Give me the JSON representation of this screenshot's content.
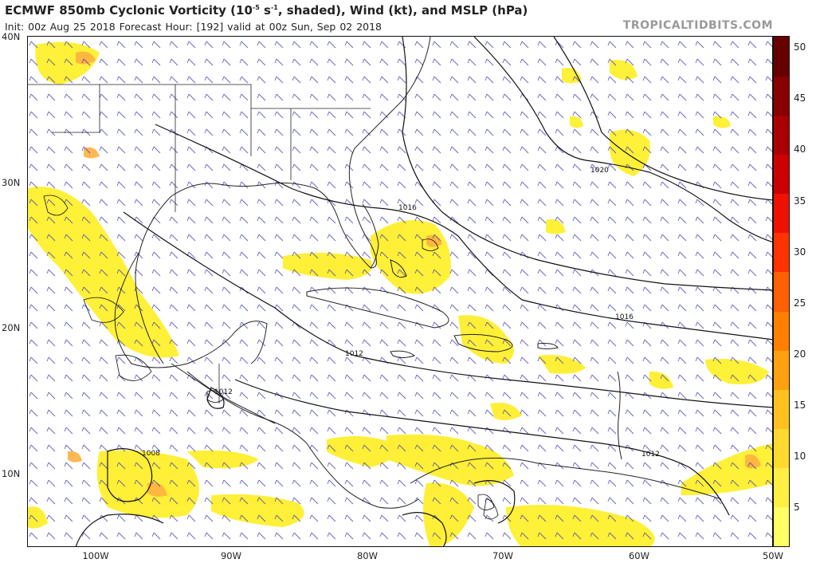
{
  "header": {
    "title_main": "ECMWF 850mb Cyclonic Vorticity (10",
    "title_exp": "-5",
    "title_unit": " s",
    "title_exp2": "-1",
    "title_rest": ", shaded), Wind (kt), and MSLP (hPa)",
    "subtitle": "Init: 00z Aug 25 2018   Forecast Hour: [192]   valid at 00z Sun, Sep 02 2018",
    "brand": "TROPICALTIDBITS.COM"
  },
  "axes": {
    "lat_labels": [
      "40N",
      "30N",
      "20N",
      "10N"
    ],
    "lon_labels": [
      "100W",
      "90W",
      "80W",
      "70W",
      "60W",
      "50W"
    ]
  },
  "colorbar": {
    "labels": [
      "50",
      "45",
      "40",
      "35",
      "30",
      "25",
      "20",
      "15",
      "10",
      "5"
    ],
    "colors": [
      "#ffff66",
      "#ffee44",
      "#ffd830",
      "#ffc020",
      "#ffa010",
      "#ff8000",
      "#ff6000",
      "#ff3300",
      "#ee1100",
      "#cc0000",
      "#aa0000",
      "#880000",
      "#660000"
    ]
  },
  "isobars": {
    "labels": [
      "1020",
      "1016",
      "1016",
      "1012",
      "1012",
      "1012",
      "1008"
    ]
  },
  "colors": {
    "vorticity_low": "#ffee00",
    "vorticity_high": "#ffaa33",
    "wind_barb": "#3333aa",
    "coastline": "#222222",
    "isobar": "#111111"
  }
}
